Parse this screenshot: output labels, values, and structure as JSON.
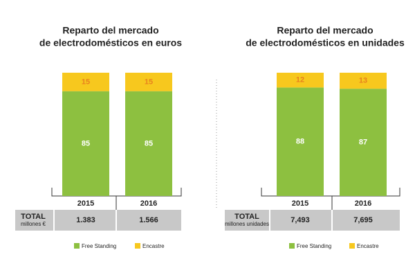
{
  "chart_data": [
    {
      "type": "bar",
      "stacked": true,
      "title": [
        "Reparto del mercado",
        "de electrodomésticos en euros"
      ],
      "categories": [
        "2015",
        "2016"
      ],
      "ylim": [
        0,
        100
      ],
      "series": [
        {
          "name": "Free Standing",
          "color": "#8dc040",
          "label_color": "#ffffff",
          "values": [
            85,
            85
          ]
        },
        {
          "name": "Encastre",
          "color": "#f7c81e",
          "label_color": "#e8821e",
          "values": [
            15,
            15
          ]
        }
      ],
      "table": {
        "label": [
          "TOTAL",
          "millones €"
        ],
        "values": [
          "1.383",
          "1.566"
        ]
      }
    },
    {
      "type": "bar",
      "stacked": true,
      "title": [
        "Reparto del mercado",
        "de electrodomésticos en unidades"
      ],
      "categories": [
        "2015",
        "2016"
      ],
      "ylim": [
        0,
        100
      ],
      "series": [
        {
          "name": "Free Standing",
          "color": "#8dc040",
          "label_color": "#ffffff",
          "values": [
            88,
            87
          ]
        },
        {
          "name": "Encastre",
          "color": "#f7c81e",
          "label_color": "#e8821e",
          "values": [
            12,
            13
          ]
        }
      ],
      "table": {
        "label": [
          "TOTAL",
          "millones unidades"
        ],
        "values": [
          "7,493",
          "7,695"
        ]
      }
    }
  ]
}
